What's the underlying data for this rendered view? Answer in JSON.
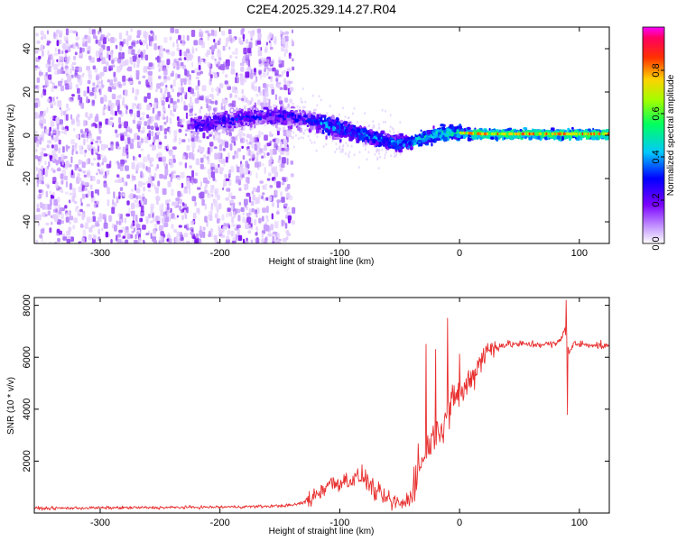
{
  "title": "C2E4.2025.329.14.27.R04",
  "chart_data": [
    {
      "type": "heatmap",
      "name": "spectrogram",
      "xlabel": "Height of straight line (km)",
      "ylabel": "Frequency (Hz)",
      "xlim": [
        -355,
        125
      ],
      "ylim": [
        -50,
        50
      ],
      "xticks": [
        -300,
        -200,
        -100,
        0,
        100
      ],
      "xtick_labels": [
        "-300",
        "-200",
        "-100",
        "0",
        "100"
      ],
      "yticks": [
        -40,
        -20,
        0,
        20,
        40
      ],
      "ytick_labels": [
        "-40",
        "-20",
        "0",
        "20",
        "40"
      ],
      "noise_region_x": [
        -355,
        -140
      ],
      "signal_trace": {
        "x": [
          -225,
          -200,
          -180,
          -160,
          -140,
          -120,
          -100,
          -80,
          -60,
          -45,
          -30,
          -15,
          0,
          20,
          50,
          80,
          100,
          125
        ],
        "frequency": [
          5,
          6,
          8,
          9,
          8,
          6,
          3,
          0,
          -3,
          -4,
          -1,
          1,
          1,
          0.5,
          0.5,
          0.5,
          0.5,
          0.5
        ]
      },
      "colorbar": {
        "label": "Normalized spectral amplitude",
        "range": [
          0,
          1
        ],
        "ticks": [
          0.0,
          0.2,
          0.4,
          0.6,
          0.8
        ],
        "tick_labels": [
          "0.0",
          "0.2",
          "0.4",
          "0.6",
          "0.8"
        ],
        "colormap": [
          "#ffffff",
          "#8a2be2",
          "#0000ff",
          "#00ffff",
          "#00ff00",
          "#ffff00",
          "#ff8000",
          "#ff0000",
          "#ff00ff"
        ]
      }
    },
    {
      "type": "line",
      "name": "snr",
      "xlabel": "Height of straight line (km)",
      "ylabel": "SNR (10 * v/v)",
      "xlim": [
        -355,
        125
      ],
      "ylim": [
        0,
        8300
      ],
      "xticks": [
        -300,
        -200,
        -100,
        0,
        100
      ],
      "xtick_labels": [
        "-300",
        "-200",
        "-100",
        "0",
        "100"
      ],
      "yticks": [
        2000,
        4000,
        6000,
        8000
      ],
      "ytick_labels": [
        "2000",
        "4000",
        "6000",
        "8000"
      ],
      "color": "#e83030",
      "series": [
        {
          "name": "SNR",
          "x": [
            -355,
            -300,
            -250,
            -200,
            -160,
            -140,
            -130,
            -120,
            -110,
            -100,
            -90,
            -80,
            -70,
            -60,
            -50,
            -45,
            -40,
            -35,
            -30,
            -25,
            -20,
            -15,
            -10,
            -5,
            0,
            5,
            10,
            15,
            20,
            30,
            40,
            50,
            60,
            70,
            80,
            85,
            88,
            90,
            92,
            95,
            100,
            110,
            125
          ],
          "values": [
            180,
            200,
            210,
            230,
            260,
            300,
            400,
            700,
            1100,
            1200,
            1300,
            1400,
            800,
            500,
            350,
            400,
            700,
            1500,
            2300,
            2700,
            3100,
            3300,
            3800,
            4400,
            4500,
            4800,
            5300,
            5700,
            6100,
            6400,
            6500,
            6500,
            6500,
            6500,
            6500,
            6700,
            7200,
            6500,
            6200,
            6500,
            6500,
            6500,
            6400
          ],
          "spikes": [
            {
              "x": -28,
              "value": 6500
            },
            {
              "x": -20,
              "value": 6300
            },
            {
              "x": -10,
              "value": 7500
            },
            {
              "x": 12,
              "value": 5500
            },
            {
              "x": 89,
              "value": 8200
            },
            {
              "x": 90,
              "value": 3800
            }
          ]
        }
      ]
    }
  ]
}
